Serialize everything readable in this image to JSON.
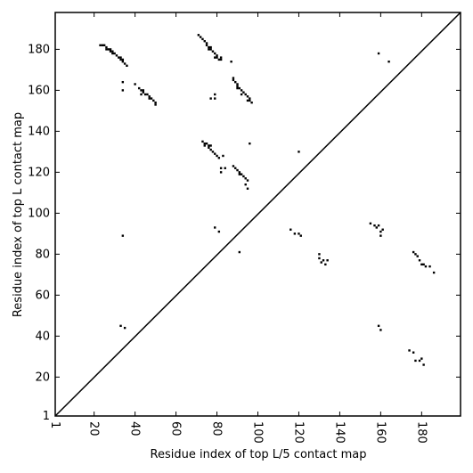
{
  "chart_data": {
    "type": "scatter",
    "xlabel": "Residue index of top L/5 contact map",
    "ylabel": "Residue index of top L contact map",
    "xlim": [
      1,
      199
    ],
    "ylim": [
      1,
      198
    ],
    "xticks": [
      1,
      20,
      40,
      60,
      80,
      100,
      120,
      140,
      160,
      180
    ],
    "yticks": [
      1,
      20,
      40,
      60,
      80,
      100,
      120,
      140,
      160,
      180
    ],
    "color": "#000000",
    "diagonal": true,
    "x": [
      23,
      24,
      25,
      26,
      26,
      27,
      28,
      29,
      29,
      30,
      31,
      32,
      33,
      33,
      34,
      34,
      35,
      36,
      28,
      34,
      34,
      40,
      42,
      43,
      44,
      45,
      46,
      47,
      48,
      49,
      50,
      50,
      43,
      44,
      47,
      71,
      72,
      73,
      74,
      75,
      75,
      76,
      77,
      77,
      78,
      79,
      80,
      80,
      81,
      82,
      82,
      87,
      76,
      79,
      79,
      79,
      77,
      88,
      88,
      89,
      90,
      90,
      90,
      91,
      92,
      93,
      94,
      95,
      96,
      96,
      97,
      95,
      92,
      73,
      74,
      75,
      76,
      76,
      77,
      78,
      79,
      80,
      81,
      83,
      74,
      77,
      82,
      82,
      84,
      88,
      89,
      90,
      91,
      92,
      93,
      94,
      95,
      94,
      95,
      96,
      91,
      34,
      79,
      81,
      91,
      120,
      116,
      118,
      120,
      121,
      130,
      130,
      131,
      132,
      133,
      134,
      155,
      157,
      158,
      159,
      160,
      160,
      161,
      176,
      177,
      178,
      179,
      180,
      181,
      182,
      184,
      186,
      33,
      35,
      159,
      164,
      159,
      160,
      174,
      176,
      177,
      179,
      180,
      181
    ],
    "values": [
      182,
      182,
      182,
      181,
      180,
      180,
      179,
      179,
      178,
      178,
      177,
      176,
      176,
      175,
      175,
      174,
      173,
      172,
      180,
      164,
      160,
      163,
      161,
      160,
      159,
      158,
      158,
      157,
      156,
      155,
      154,
      153,
      158,
      160,
      156,
      187,
      186,
      185,
      184,
      183,
      182,
      181,
      181,
      180,
      179,
      178,
      177,
      176,
      175,
      175,
      176,
      174,
      180,
      176,
      158,
      156,
      156,
      166,
      165,
      164,
      163,
      162,
      161,
      161,
      160,
      159,
      158,
      157,
      156,
      155,
      154,
      155,
      158,
      135,
      134,
      134,
      133,
      132,
      131,
      130,
      129,
      128,
      127,
      128,
      133,
      133,
      122,
      120,
      122,
      123,
      122,
      121,
      120,
      119,
      118,
      117,
      116,
      114,
      112,
      134,
      119,
      89,
      93,
      91,
      81,
      130,
      92,
      90,
      90,
      89,
      80,
      78,
      76,
      77,
      75,
      77,
      95,
      94,
      93,
      94,
      91,
      89,
      92,
      81,
      80,
      79,
      77,
      75,
      75,
      74,
      74,
      71,
      45,
      44,
      178,
      174,
      45,
      43,
      33,
      32,
      28,
      28,
      29,
      26
    ]
  }
}
